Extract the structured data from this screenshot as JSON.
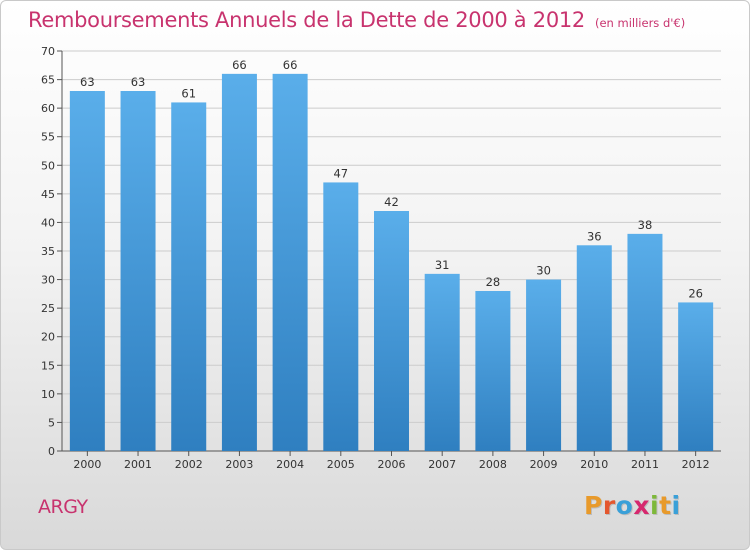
{
  "header": {
    "title": "Remboursements Annuels de la Dette de 2000 à 2012",
    "subtitle": "(en milliers d'€)"
  },
  "footer": {
    "commune": "ARGY",
    "logo": {
      "text": "Proxiti",
      "letters": [
        {
          "ch": "P",
          "color": "#e89a2b"
        },
        {
          "ch": "r",
          "color": "#e4572e"
        },
        {
          "ch": "o",
          "color": "#3aa0d8"
        },
        {
          "ch": "x",
          "color": "#d6286e"
        },
        {
          "ch": "i",
          "color": "#7db83a"
        },
        {
          "ch": "t",
          "color": "#e89a2b"
        },
        {
          "ch": "i",
          "color": "#3aa0d8"
        }
      ]
    }
  },
  "colors": {
    "accent": "#c8336e",
    "bar_top": "#5aaeea",
    "bar_bottom": "#2f7fc0",
    "grid": "#cccccc"
  },
  "chart_data": {
    "type": "bar",
    "title": "Remboursements Annuels de la Dette de 2000 à 2012",
    "subtitle": "(en milliers d'€)",
    "categories": [
      "2000",
      "2001",
      "2002",
      "2003",
      "2004",
      "2005",
      "2006",
      "2007",
      "2008",
      "2009",
      "2010",
      "2011",
      "2012"
    ],
    "values": [
      63,
      63,
      61,
      66,
      66,
      47,
      42,
      31,
      28,
      30,
      36,
      38,
      26
    ],
    "ylim": [
      0,
      70
    ],
    "yticks": [
      0,
      5,
      10,
      15,
      20,
      25,
      30,
      35,
      40,
      45,
      50,
      55,
      60,
      65,
      70
    ],
    "xlabel": "",
    "ylabel": "",
    "grid": true,
    "data_labels": true
  }
}
